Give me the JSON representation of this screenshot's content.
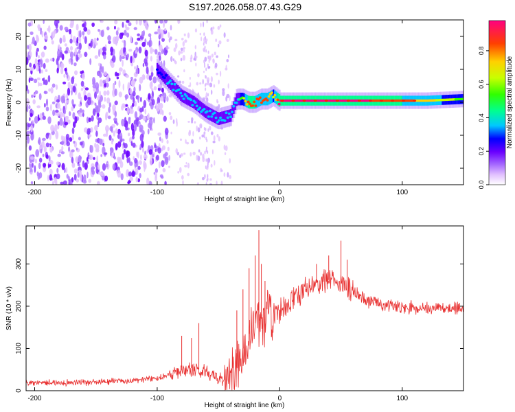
{
  "figure": {
    "title": "S197.2026.058.07.43.G29"
  },
  "chart_data": [
    {
      "type": "heatmap",
      "xlabel": "Height of straight line (km)",
      "ylabel": "Frequency (Hz)",
      "xlim": [
        -207,
        150
      ],
      "ylim": [
        -25,
        25
      ],
      "xticks": [
        -200,
        -100,
        0,
        100
      ],
      "yticks": [
        -20,
        -10,
        0,
        10,
        20
      ],
      "colorbar": {
        "label": "Normalized spectral amplitude",
        "range": [
          0,
          0.98
        ],
        "ticks": [
          0.0,
          0.2,
          0.4,
          0.6,
          0.8
        ],
        "tick_labels": [
          "0.0",
          "0.2",
          "0.4",
          "0.6",
          "0.8"
        ]
      },
      "ridge": {
        "x": [
          -100,
          -90,
          -80,
          -70,
          -60,
          -50,
          -40,
          -35,
          -30,
          -25,
          -20,
          -15,
          -10,
          -5,
          0,
          20,
          40,
          60,
          80,
          100,
          120,
          150
        ],
        "frequency": [
          10,
          6,
          2,
          0,
          -3,
          -5,
          -4,
          1,
          1,
          0,
          0,
          1,
          1,
          2,
          0.5,
          0.5,
          0.5,
          0.5,
          0.5,
          0.5,
          0.5,
          1
        ],
        "amplitude": [
          0.22,
          0.3,
          0.33,
          0.35,
          0.33,
          0.35,
          0.35,
          0.3,
          0.55,
          0.85,
          0.8,
          0.75,
          0.78,
          0.6,
          0.92,
          0.93,
          0.95,
          0.9,
          0.85,
          0.8,
          0.7,
          0.5
        ]
      }
    },
    {
      "type": "line",
      "xlabel": "Height of straight line (km)",
      "ylabel": "SNR (10 * v/v)",
      "xlim": [
        -207,
        150
      ],
      "ylim": [
        0,
        390
      ],
      "xticks": [
        -200,
        -100,
        0,
        100
      ],
      "yticks": [
        0,
        100,
        200,
        300
      ],
      "series": [
        {
          "name": "SNR",
          "color": "#e83030",
          "trend": {
            "x": [
              -207,
              -150,
              -120,
              -100,
              -90,
              -80,
              -70,
              -60,
              -50,
              -40,
              -35,
              -30,
              -25,
              -20,
              -15,
              -10,
              -5,
              0,
              10,
              20,
              30,
              40,
              45,
              50,
              55,
              60,
              70,
              80,
              90,
              100,
              120,
              150
            ],
            "y": [
              18,
              20,
              24,
              30,
              38,
              48,
              55,
              45,
              28,
              30,
              55,
              100,
              135,
              160,
              170,
              175,
              180,
              190,
              215,
              240,
              255,
              262,
              265,
              262,
              250,
              235,
              215,
              205,
              200,
              198,
              196,
              195
            ]
          },
          "spikes": [
            {
              "x": -80,
              "y": 130
            },
            {
              "x": -72,
              "y": 125
            },
            {
              "x": -66,
              "y": 160
            },
            {
              "x": -35,
              "y": 190
            },
            {
              "x": -30,
              "y": 240
            },
            {
              "x": -25,
              "y": 290
            },
            {
              "x": -20,
              "y": 320
            },
            {
              "x": -17,
              "y": 380
            },
            {
              "x": -15,
              "y": 300
            },
            {
              "x": -12,
              "y": 260
            },
            {
              "x": 30,
              "y": 300
            },
            {
              "x": 40,
              "y": 320
            },
            {
              "x": 50,
              "y": 355
            },
            {
              "x": 55,
              "y": 310
            }
          ]
        }
      ]
    }
  ]
}
